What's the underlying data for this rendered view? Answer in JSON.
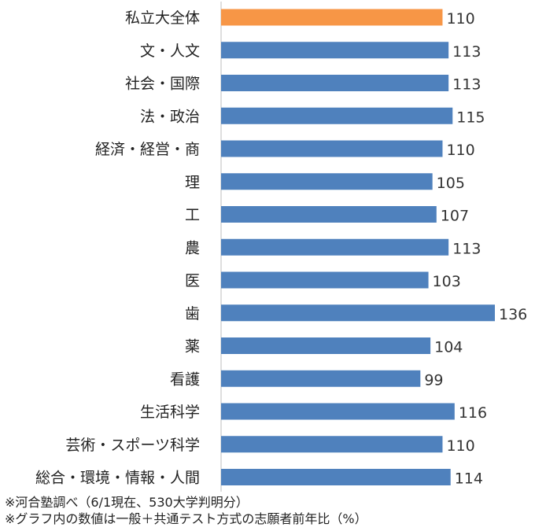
{
  "chart_data": {
    "type": "bar",
    "orientation": "horizontal",
    "categories": [
      "私立大全体",
      "文・人文",
      "社会・国際",
      "法・政治",
      "経済・経営・商",
      "理",
      "工",
      "農",
      "医",
      "歯",
      "薬",
      "看護",
      "生活科学",
      "芸術・スポーツ科学",
      "総合・環境・情報・人間"
    ],
    "values": [
      110,
      113,
      113,
      115,
      110,
      105,
      107,
      113,
      103,
      136,
      104,
      99,
      116,
      110,
      114
    ],
    "highlight_index": 0,
    "colors": {
      "default": "#4f81bd",
      "highlight": "#f79646"
    },
    "xlim": [
      0,
      140
    ],
    "grid": false,
    "legend": "none",
    "value_labels": true
  },
  "notes": [
    "※河合塾調べ（6/1現在、530大学判明分）",
    "※グラフ内の数値は一般＋共通テスト方式の志願者前年比（%）"
  ]
}
